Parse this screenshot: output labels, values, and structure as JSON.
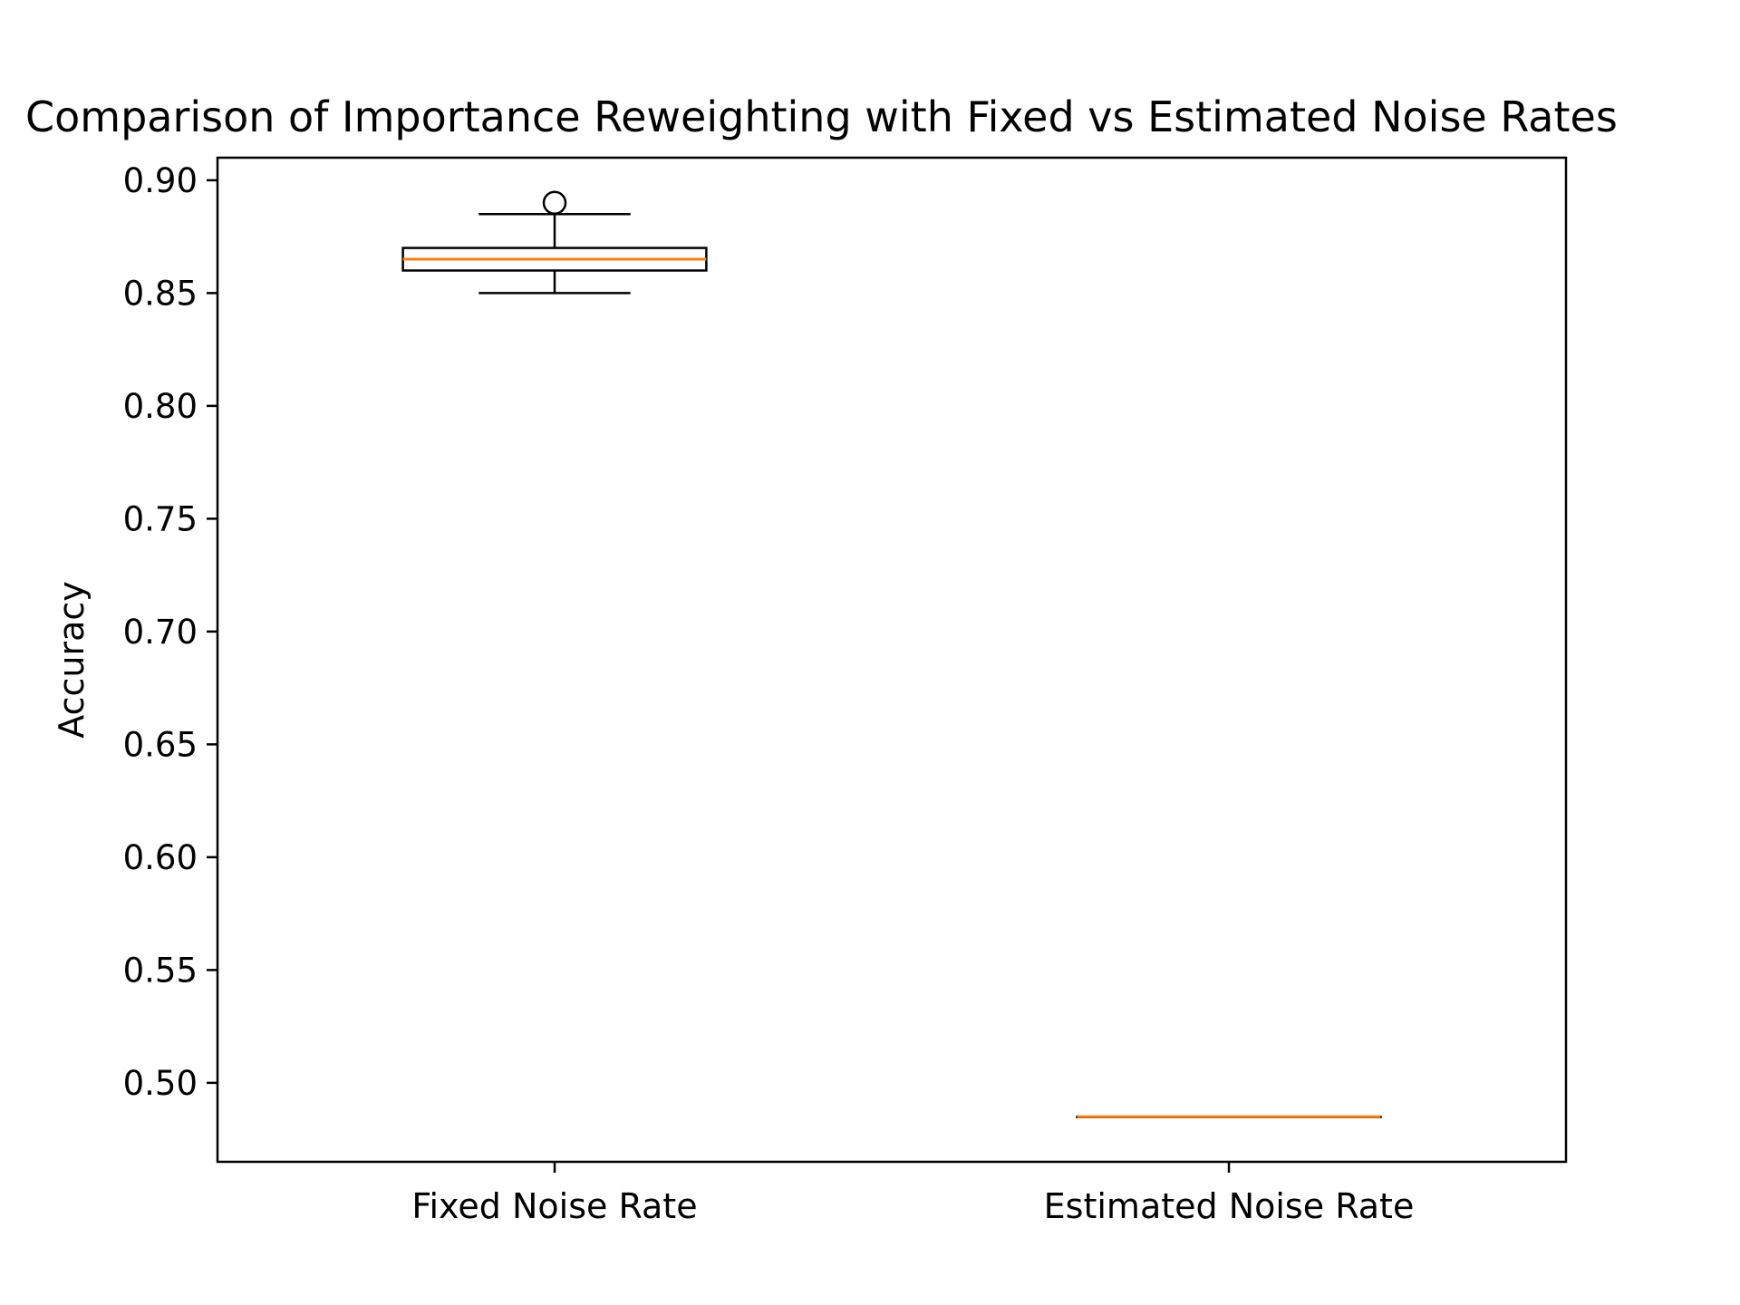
{
  "chart_data": {
    "type": "boxplot",
    "title": "Comparison of Importance Reweighting with Fixed vs Estimated Noise Rates",
    "xlabel": "",
    "ylabel": "Accuracy",
    "categories": [
      "Fixed Noise Rate",
      "Estimated Noise Rate"
    ],
    "boxes": [
      {
        "category": "Fixed Noise Rate",
        "whisker_low": 0.85,
        "q1": 0.86,
        "median": 0.865,
        "q3": 0.87,
        "whisker_high": 0.885,
        "outliers": [
          0.89
        ]
      },
      {
        "category": "Estimated Noise Rate",
        "whisker_low": 0.485,
        "q1": 0.485,
        "median": 0.485,
        "q3": 0.485,
        "whisker_high": 0.485,
        "outliers": []
      }
    ],
    "ylim": [
      0.465,
      0.91
    ],
    "yticks": [
      "0.50",
      "0.55",
      "0.60",
      "0.65",
      "0.70",
      "0.75",
      "0.80",
      "0.85",
      "0.90"
    ],
    "grid": false,
    "legend": "none",
    "colors": {
      "box": "#000000",
      "median": "#ff7f0e",
      "axes": "#000000",
      "background": "#ffffff"
    }
  }
}
